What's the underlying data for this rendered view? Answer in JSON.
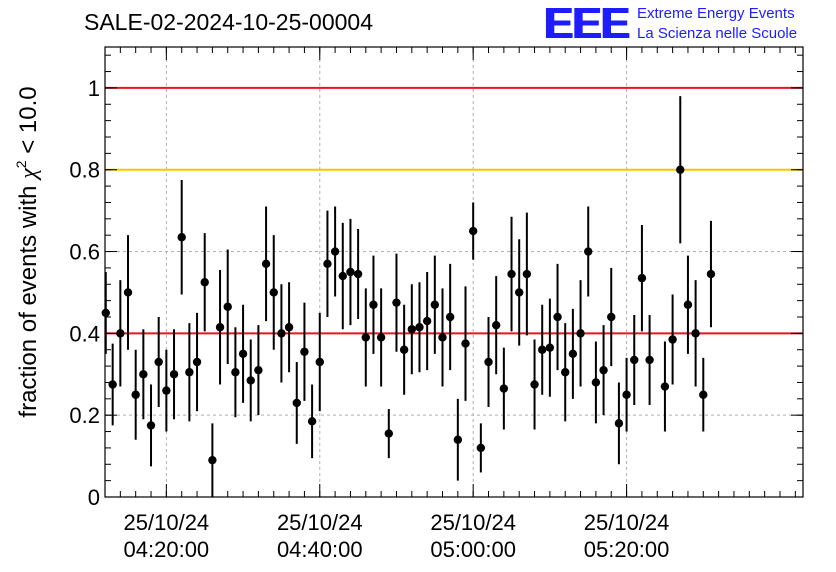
{
  "header": {
    "title": "SALE-02-2024-10-25-00004",
    "logo_mark": "EEE",
    "logo_line1": "Extreme Energy Events",
    "logo_line2": "La Scienza nelle Scuole"
  },
  "colors": {
    "points": "#000000",
    "red_lines": "#e8141e",
    "orange_line": "#ffc400",
    "grid": "#b0b0b0",
    "logo": "#1d1dff"
  },
  "chart_data": {
    "type": "scatter",
    "title": "SALE-02-2024-10-25-00004",
    "ylabel": "fraction of events with χ² < 10.0",
    "ylabel_parts": {
      "pre": "fraction of events with ",
      "sym": "χ",
      "sup": "2",
      "post": " < 10.0"
    },
    "xlabel": "",
    "ylim": [
      0,
      1.1
    ],
    "xlim_minutes": [
      0,
      91
    ],
    "grid": true,
    "y_ticks": [
      0,
      0.2,
      0.4,
      0.6,
      0.8,
      1
    ],
    "y_tick_labels": [
      "0",
      "0.2",
      "0.4",
      "0.6",
      "0.8",
      "1"
    ],
    "x_ticks": [
      {
        "date": "25/10/24",
        "time": "04:20:00",
        "minute": 8
      },
      {
        "date": "25/10/24",
        "time": "04:40:00",
        "minute": 28
      },
      {
        "date": "25/10/24",
        "time": "05:00:00",
        "minute": 48
      },
      {
        "date": "25/10/24",
        "time": "05:20:00",
        "minute": 68
      }
    ],
    "reference_lines": [
      {
        "y": 1.0,
        "color": "#e8141e"
      },
      {
        "y": 0.8,
        "color": "#ffc400"
      },
      {
        "y": 0.4,
        "color": "#e8141e"
      }
    ],
    "points": [
      [
        0.1,
        0.45,
        0.1
      ],
      [
        1.0,
        0.275,
        0.1
      ],
      [
        2.0,
        0.4,
        0.13
      ],
      [
        3.0,
        0.5,
        0.14
      ],
      [
        4.0,
        0.25,
        0.11
      ],
      [
        5.0,
        0.3,
        0.11
      ],
      [
        6.0,
        0.175,
        0.1
      ],
      [
        7.0,
        0.33,
        0.11
      ],
      [
        8.0,
        0.26,
        0.1
      ],
      [
        9.0,
        0.3,
        0.11
      ],
      [
        10.0,
        0.635,
        0.14
      ],
      [
        11.0,
        0.305,
        0.12
      ],
      [
        12.0,
        0.33,
        0.12
      ],
      [
        13.0,
        0.525,
        0.12
      ],
      [
        14.0,
        0.09,
        0.09
      ],
      [
        15.0,
        0.415,
        0.14
      ],
      [
        16.0,
        0.465,
        0.14
      ],
      [
        17.0,
        0.305,
        0.11
      ],
      [
        18.0,
        0.35,
        0.12
      ],
      [
        19.0,
        0.285,
        0.1
      ],
      [
        20.0,
        0.31,
        0.11
      ],
      [
        21.0,
        0.57,
        0.14
      ],
      [
        22.0,
        0.5,
        0.14
      ],
      [
        23.0,
        0.4,
        0.12
      ],
      [
        24.0,
        0.415,
        0.11
      ],
      [
        25.0,
        0.23,
        0.1
      ],
      [
        26.0,
        0.355,
        0.12
      ],
      [
        27.0,
        0.185,
        0.09
      ],
      [
        28.0,
        0.33,
        0.12
      ],
      [
        29.0,
        0.57,
        0.13
      ],
      [
        30.0,
        0.6,
        0.11
      ],
      [
        31.0,
        0.54,
        0.13
      ],
      [
        32.0,
        0.55,
        0.13
      ],
      [
        33.0,
        0.545,
        0.11
      ],
      [
        34.0,
        0.39,
        0.12
      ],
      [
        35.0,
        0.47,
        0.12
      ],
      [
        36.0,
        0.39,
        0.12
      ],
      [
        37.0,
        0.155,
        0.06
      ],
      [
        38.0,
        0.475,
        0.12
      ],
      [
        39.0,
        0.36,
        0.11
      ],
      [
        40.0,
        0.41,
        0.11
      ],
      [
        41.0,
        0.415,
        0.11
      ],
      [
        42.0,
        0.43,
        0.12
      ],
      [
        43.0,
        0.47,
        0.12
      ],
      [
        44.0,
        0.39,
        0.12
      ],
      [
        45.0,
        0.44,
        0.13
      ],
      [
        46.0,
        0.14,
        0.1
      ],
      [
        47.0,
        0.375,
        0.14
      ],
      [
        48.0,
        0.65,
        0.07
      ],
      [
        49.0,
        0.12,
        0.06
      ],
      [
        50.0,
        0.33,
        0.11
      ],
      [
        51.0,
        0.42,
        0.12
      ],
      [
        52.0,
        0.265,
        0.1
      ],
      [
        53.0,
        0.545,
        0.14
      ],
      [
        54.0,
        0.5,
        0.13
      ],
      [
        55.0,
        0.545,
        0.15
      ],
      [
        56.0,
        0.275,
        0.11
      ],
      [
        57.0,
        0.36,
        0.11
      ],
      [
        58.0,
        0.365,
        0.12
      ],
      [
        59.0,
        0.44,
        0.13
      ],
      [
        60.0,
        0.305,
        0.12
      ],
      [
        61.0,
        0.35,
        0.11
      ],
      [
        62.0,
        0.4,
        0.13
      ],
      [
        63.0,
        0.6,
        0.11
      ],
      [
        64.0,
        0.28,
        0.1
      ],
      [
        65.0,
        0.31,
        0.11
      ],
      [
        66.0,
        0.44,
        0.12
      ],
      [
        67.0,
        0.18,
        0.1
      ],
      [
        68.0,
        0.25,
        0.09
      ],
      [
        69.0,
        0.335,
        0.11
      ],
      [
        70.0,
        0.535,
        0.13
      ],
      [
        71.0,
        0.335,
        0.11
      ],
      [
        73.0,
        0.27,
        0.11
      ],
      [
        74.0,
        0.385,
        0.11
      ],
      [
        75.0,
        0.8,
        0.18
      ],
      [
        76.0,
        0.47,
        0.12
      ],
      [
        77.0,
        0.4,
        0.13
      ],
      [
        78.0,
        0.25,
        0.09
      ],
      [
        79.0,
        0.545,
        0.13
      ]
    ]
  }
}
